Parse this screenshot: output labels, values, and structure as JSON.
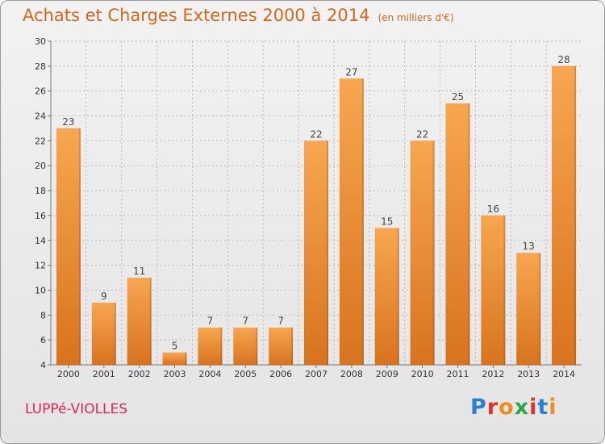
{
  "header": {
    "title": "Achats et Charges Externes 2000 à 2014",
    "subtitle": "(en milliers d'€)"
  },
  "footer": {
    "location": "LUPPé-VIOLLES",
    "logo_letters": [
      "P",
      "r",
      "o",
      "x",
      "i",
      "t",
      "i"
    ],
    "logo_colors": [
      "#2a7fd4",
      "#e8302a",
      "#f08c1e",
      "#2aa84a",
      "#e8302a",
      "#2a7fd4",
      "#f08c1e"
    ]
  },
  "chart_data": {
    "type": "bar",
    "title": "Achats et Charges Externes 2000 à 2014",
    "categories": [
      "2000",
      "2001",
      "2002",
      "2003",
      "2004",
      "2005",
      "2006",
      "2007",
      "2008",
      "2009",
      "2010",
      "2011",
      "2012",
      "2013",
      "2014"
    ],
    "values": [
      23,
      9,
      11,
      5,
      7,
      7,
      7,
      22,
      27,
      15,
      22,
      25,
      16,
      13,
      28
    ],
    "ylim": [
      4,
      30
    ],
    "yticks": [
      4,
      6,
      8,
      10,
      12,
      14,
      16,
      18,
      20,
      22,
      24,
      26,
      28,
      30
    ],
    "grid": true,
    "bar_color_top": "#f8a650",
    "bar_color_bottom": "#d8731e",
    "grid_color": "#bbbbbb",
    "xlabel": "",
    "ylabel": ""
  }
}
